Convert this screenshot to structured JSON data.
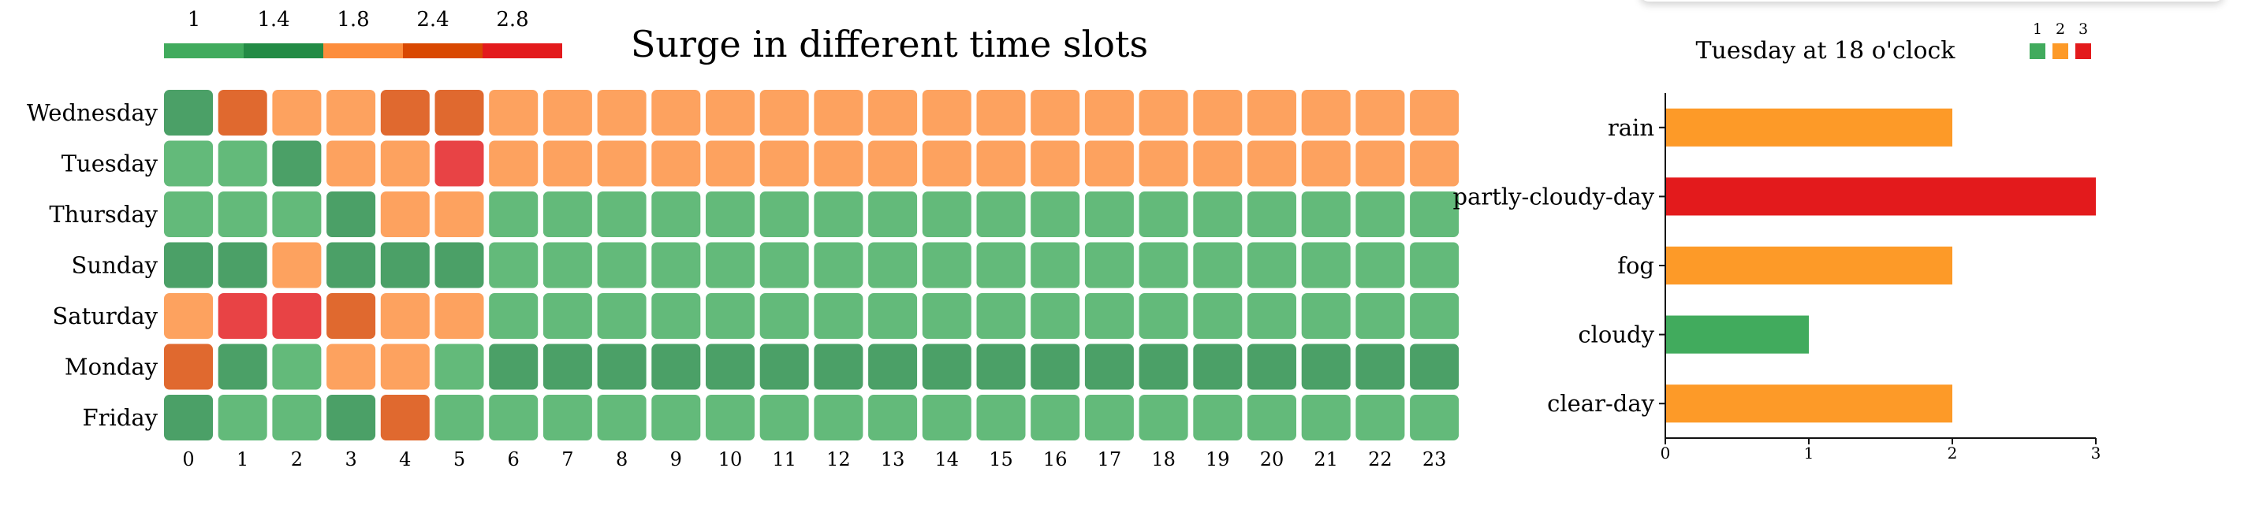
{
  "heatmap": {
    "title": "Surge in different time slots",
    "legend": {
      "labels": [
        "1",
        "1.4",
        "1.8",
        "2.4",
        "2.8"
      ],
      "colors": [
        "#41ab5d",
        "#238b45",
        "#fd8d3c",
        "#d94801",
        "#e31a1c"
      ]
    },
    "chart_data": {
      "type": "heatmap",
      "rows": [
        "Wednesday",
        "Tuesday",
        "Thursday",
        "Sunday",
        "Saturday",
        "Monday",
        "Friday"
      ],
      "columns": [
        "0",
        "1",
        "2",
        "3",
        "4",
        "5",
        "6",
        "7",
        "8",
        "9",
        "10",
        "11",
        "12",
        "13",
        "14",
        "15",
        "16",
        "17",
        "18",
        "19",
        "20",
        "21",
        "22",
        "23"
      ],
      "levels": [
        [
          1,
          3,
          2,
          2,
          3,
          3,
          2,
          2,
          2,
          2,
          2,
          2,
          2,
          2,
          2,
          2,
          2,
          2,
          2,
          2,
          2,
          2,
          2,
          2
        ],
        [
          0,
          0,
          1,
          2,
          2,
          4,
          2,
          2,
          2,
          2,
          2,
          2,
          2,
          2,
          2,
          2,
          2,
          2,
          2,
          2,
          2,
          2,
          2,
          2
        ],
        [
          0,
          0,
          0,
          1,
          2,
          2,
          0,
          0,
          0,
          0,
          0,
          0,
          0,
          0,
          0,
          0,
          0,
          0,
          0,
          0,
          0,
          0,
          0,
          0
        ],
        [
          1,
          1,
          2,
          1,
          1,
          1,
          0,
          0,
          0,
          0,
          0,
          0,
          0,
          0,
          0,
          0,
          0,
          0,
          0,
          0,
          0,
          0,
          0,
          0
        ],
        [
          2,
          4,
          4,
          3,
          2,
          2,
          0,
          0,
          0,
          0,
          0,
          0,
          0,
          0,
          0,
          0,
          0,
          0,
          0,
          0,
          0,
          0,
          0,
          0
        ],
        [
          3,
          1,
          0,
          2,
          2,
          0,
          1,
          1,
          1,
          1,
          1,
          1,
          1,
          1,
          1,
          1,
          1,
          1,
          1,
          1,
          1,
          1,
          1,
          1
        ],
        [
          1,
          0,
          0,
          1,
          3,
          0,
          0,
          0,
          0,
          0,
          0,
          0,
          0,
          0,
          0,
          0,
          0,
          0,
          0,
          0,
          0,
          0,
          0,
          0
        ]
      ],
      "level_colors": [
        "#41ab5d",
        "#238b45",
        "#fd8d3c",
        "#d94801",
        "#e31a1c"
      ]
    }
  },
  "bar": {
    "title": "Tuesday at 18 o'clock",
    "legend": {
      "labels": [
        "1",
        "2",
        "3"
      ],
      "colors": [
        "#41ab5d",
        "#fd9a28",
        "#e31a1c"
      ]
    },
    "chart_data": {
      "type": "bar",
      "orientation": "horizontal",
      "categories": [
        "rain",
        "partly-cloudy-day",
        "fog",
        "cloudy",
        "clear-day"
      ],
      "values": [
        2,
        3,
        2,
        1,
        2
      ],
      "xlim": [
        0,
        3
      ],
      "xticks": [
        "0",
        "1",
        "2",
        "3"
      ],
      "colors": [
        "#fd9a28",
        "#e31a1c",
        "#fd9a28",
        "#41ab5d",
        "#fd9a28"
      ]
    }
  }
}
